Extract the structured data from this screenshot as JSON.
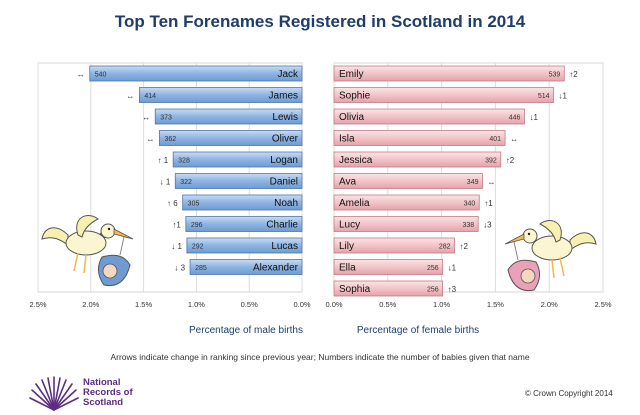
{
  "title": "Top Ten Forenames Registered in Scotland in 2014",
  "footnote": "Arrows indicate change in ranking since previous year; Numbers indicate the number of babies given that name",
  "copyright": "© Crown Copyright 2014",
  "logo": {
    "line1": "National",
    "line2": "Records of",
    "line3": "Scotland"
  },
  "icons": {
    "left": "stork-carrying-baby-boy-icon",
    "right": "stork-carrying-baby-girl-icon",
    "logo": "nrs-fan-logo-icon"
  },
  "colors": {
    "male_bar": "#8db4e2",
    "female_bar": "#f2c4c8",
    "title": "#1f3d6b",
    "logo": "#5b2d82"
  },
  "chart_data": [
    {
      "type": "bar",
      "orientation": "horizontal",
      "direction": "right-to-left",
      "xlabel": "Percentage of male births",
      "xlim": [
        0,
        2.5
      ],
      "xticks": [
        "2.5%",
        "2.0%",
        "1.5%",
        "1.0%",
        "0.5%",
        "0.0%"
      ],
      "categories": [
        "Jack",
        "James",
        "Lewis",
        "Oliver",
        "Logan",
        "Daniel",
        "Noah",
        "Charlie",
        "Lucas",
        "Alexander"
      ],
      "values": [
        2.01,
        1.54,
        1.39,
        1.35,
        1.22,
        1.2,
        1.13,
        1.1,
        1.09,
        1.06
      ],
      "counts": [
        "540",
        "414",
        "373",
        "362",
        "328",
        "322",
        "305",
        "296",
        "292",
        "285"
      ],
      "changes": [
        "↔",
        "↔",
        "↔",
        "↔",
        "↑ 1",
        "↓ 1",
        "↑ 6",
        "↑1",
        "↓ 1",
        "↓ 3"
      ]
    },
    {
      "type": "bar",
      "orientation": "horizontal",
      "direction": "left-to-right",
      "xlabel": "Percentage of female births",
      "xlim": [
        0,
        2.5
      ],
      "xticks": [
        "0.0%",
        "0.5%",
        "1.0%",
        "1.5%",
        "2.0%",
        "2.5%"
      ],
      "categories": [
        "Emily",
        "Sophie",
        "Olivia",
        "Isla",
        "Jessica",
        "Ava",
        "Amelia",
        "Lucy",
        "Lily",
        "Ella",
        "Sophia"
      ],
      "values": [
        2.14,
        2.04,
        1.77,
        1.59,
        1.55,
        1.38,
        1.35,
        1.34,
        1.12,
        1.01,
        1.01
      ],
      "counts": [
        "539",
        "514",
        "446",
        "401",
        "392",
        "349",
        "340",
        "338",
        "282",
        "256",
        "256"
      ],
      "changes": [
        "↑2",
        "↓1",
        "↓1",
        "↔",
        "↑2",
        "↔",
        "↑1",
        "↓3",
        "↑2",
        "↓1",
        "↑3"
      ]
    }
  ]
}
